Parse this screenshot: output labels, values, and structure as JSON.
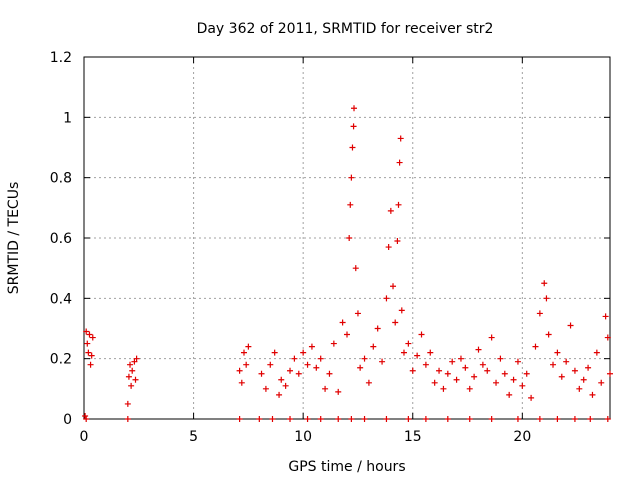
{
  "chart_data": {
    "type": "scatter",
    "title": "Day 362 of 2011, SRMTID for receiver str2",
    "xlabel": "GPS time / hours",
    "ylabel": "SRMTID / TECUs",
    "xlim": [
      0,
      24
    ],
    "ylim": [
      0,
      1.2
    ],
    "x_ticks": [
      0,
      5,
      10,
      15,
      20
    ],
    "x_tick_labels": [
      "0",
      "5",
      "10",
      "15",
      "20"
    ],
    "y_ticks": [
      0,
      0.2,
      0.4,
      0.6,
      0.8,
      1,
      1.2
    ],
    "y_tick_labels": [
      "0",
      "0.2",
      "0.4",
      "0.6",
      "0.8",
      "1",
      "1.2"
    ],
    "grid": true,
    "marker": "+",
    "marker_color": "#e00000",
    "series": [
      {
        "name": "SRMTID",
        "points": [
          [
            0.05,
            0.01
          ],
          [
            0.1,
            0.29
          ],
          [
            0.15,
            0.25
          ],
          [
            0.2,
            0.22
          ],
          [
            0.25,
            0.28
          ],
          [
            0.3,
            0.18
          ],
          [
            0.35,
            0.21
          ],
          [
            0.4,
            0.27
          ],
          [
            2.0,
            0.05
          ],
          [
            2.05,
            0.14
          ],
          [
            2.1,
            0.18
          ],
          [
            2.15,
            0.11
          ],
          [
            2.2,
            0.16
          ],
          [
            2.3,
            0.19
          ],
          [
            2.35,
            0.13
          ],
          [
            2.4,
            0.2
          ],
          [
            7.1,
            0.16
          ],
          [
            7.2,
            0.12
          ],
          [
            7.3,
            0.22
          ],
          [
            7.4,
            0.18
          ],
          [
            7.5,
            0.24
          ],
          [
            8.1,
            0.15
          ],
          [
            8.3,
            0.1
          ],
          [
            8.5,
            0.18
          ],
          [
            8.7,
            0.22
          ],
          [
            8.9,
            0.08
          ],
          [
            9.0,
            0.13
          ],
          [
            9.2,
            0.11
          ],
          [
            9.4,
            0.16
          ],
          [
            9.6,
            0.2
          ],
          [
            9.8,
            0.15
          ],
          [
            10.0,
            0.22
          ],
          [
            10.2,
            0.18
          ],
          [
            10.4,
            0.24
          ],
          [
            10.6,
            0.17
          ],
          [
            10.8,
            0.2
          ],
          [
            11.0,
            0.1
          ],
          [
            11.2,
            0.15
          ],
          [
            11.4,
            0.25
          ],
          [
            11.6,
            0.09
          ],
          [
            11.8,
            0.32
          ],
          [
            12.0,
            0.28
          ],
          [
            12.1,
            0.6
          ],
          [
            12.15,
            0.71
          ],
          [
            12.2,
            0.8
          ],
          [
            12.25,
            0.9
          ],
          [
            12.3,
            0.97
          ],
          [
            12.32,
            1.03
          ],
          [
            12.4,
            0.5
          ],
          [
            12.5,
            0.35
          ],
          [
            12.6,
            0.17
          ],
          [
            12.8,
            0.2
          ],
          [
            13.0,
            0.12
          ],
          [
            13.2,
            0.24
          ],
          [
            13.4,
            0.3
          ],
          [
            13.6,
            0.19
          ],
          [
            13.8,
            0.4
          ],
          [
            13.9,
            0.57
          ],
          [
            14.0,
            0.69
          ],
          [
            14.1,
            0.44
          ],
          [
            14.2,
            0.32
          ],
          [
            14.3,
            0.59
          ],
          [
            14.35,
            0.71
          ],
          [
            14.4,
            0.85
          ],
          [
            14.45,
            0.93
          ],
          [
            14.5,
            0.36
          ],
          [
            14.6,
            0.22
          ],
          [
            14.8,
            0.25
          ],
          [
            15.0,
            0.16
          ],
          [
            15.2,
            0.21
          ],
          [
            15.4,
            0.28
          ],
          [
            15.6,
            0.18
          ],
          [
            15.8,
            0.22
          ],
          [
            16.0,
            0.12
          ],
          [
            16.2,
            0.16
          ],
          [
            16.4,
            0.1
          ],
          [
            16.6,
            0.15
          ],
          [
            16.8,
            0.19
          ],
          [
            17.0,
            0.13
          ],
          [
            17.2,
            0.2
          ],
          [
            17.4,
            0.17
          ],
          [
            17.6,
            0.1
          ],
          [
            17.8,
            0.14
          ],
          [
            18.0,
            0.23
          ],
          [
            18.2,
            0.18
          ],
          [
            18.4,
            0.16
          ],
          [
            18.6,
            0.27
          ],
          [
            18.8,
            0.12
          ],
          [
            19.0,
            0.2
          ],
          [
            19.2,
            0.15
          ],
          [
            19.4,
            0.08
          ],
          [
            19.6,
            0.13
          ],
          [
            19.8,
            0.19
          ],
          [
            20.0,
            0.11
          ],
          [
            20.2,
            0.15
          ],
          [
            20.4,
            0.07
          ],
          [
            20.6,
            0.24
          ],
          [
            20.8,
            0.35
          ],
          [
            21.0,
            0.45
          ],
          [
            21.1,
            0.4
          ],
          [
            21.2,
            0.28
          ],
          [
            21.4,
            0.18
          ],
          [
            21.6,
            0.22
          ],
          [
            21.8,
            0.14
          ],
          [
            22.0,
            0.19
          ],
          [
            22.2,
            0.31
          ],
          [
            22.4,
            0.16
          ],
          [
            22.6,
            0.1
          ],
          [
            22.8,
            0.13
          ],
          [
            23.0,
            0.17
          ],
          [
            23.2,
            0.08
          ],
          [
            23.4,
            0.22
          ],
          [
            23.6,
            0.12
          ],
          [
            23.8,
            0.34
          ],
          [
            23.9,
            0.27
          ],
          [
            24.0,
            0.15
          ],
          [
            0.1,
            0.0
          ],
          [
            2.0,
            0.0
          ],
          [
            7.1,
            0.0
          ],
          [
            8.0,
            0.0
          ],
          [
            8.6,
            0.0
          ],
          [
            9.4,
            0.0
          ],
          [
            10.2,
            0.0
          ],
          [
            10.8,
            0.0
          ],
          [
            11.6,
            0.0
          ],
          [
            12.2,
            0.0
          ],
          [
            12.8,
            0.0
          ],
          [
            13.8,
            0.0
          ],
          [
            14.8,
            0.0
          ],
          [
            15.6,
            0.0
          ],
          [
            16.6,
            0.0
          ],
          [
            17.6,
            0.0
          ],
          [
            18.6,
            0.0
          ],
          [
            19.8,
            0.0
          ],
          [
            20.8,
            0.0
          ],
          [
            21.6,
            0.0
          ],
          [
            22.4,
            0.0
          ],
          [
            23.1,
            0.0
          ],
          [
            23.9,
            0.0
          ]
        ]
      }
    ]
  }
}
